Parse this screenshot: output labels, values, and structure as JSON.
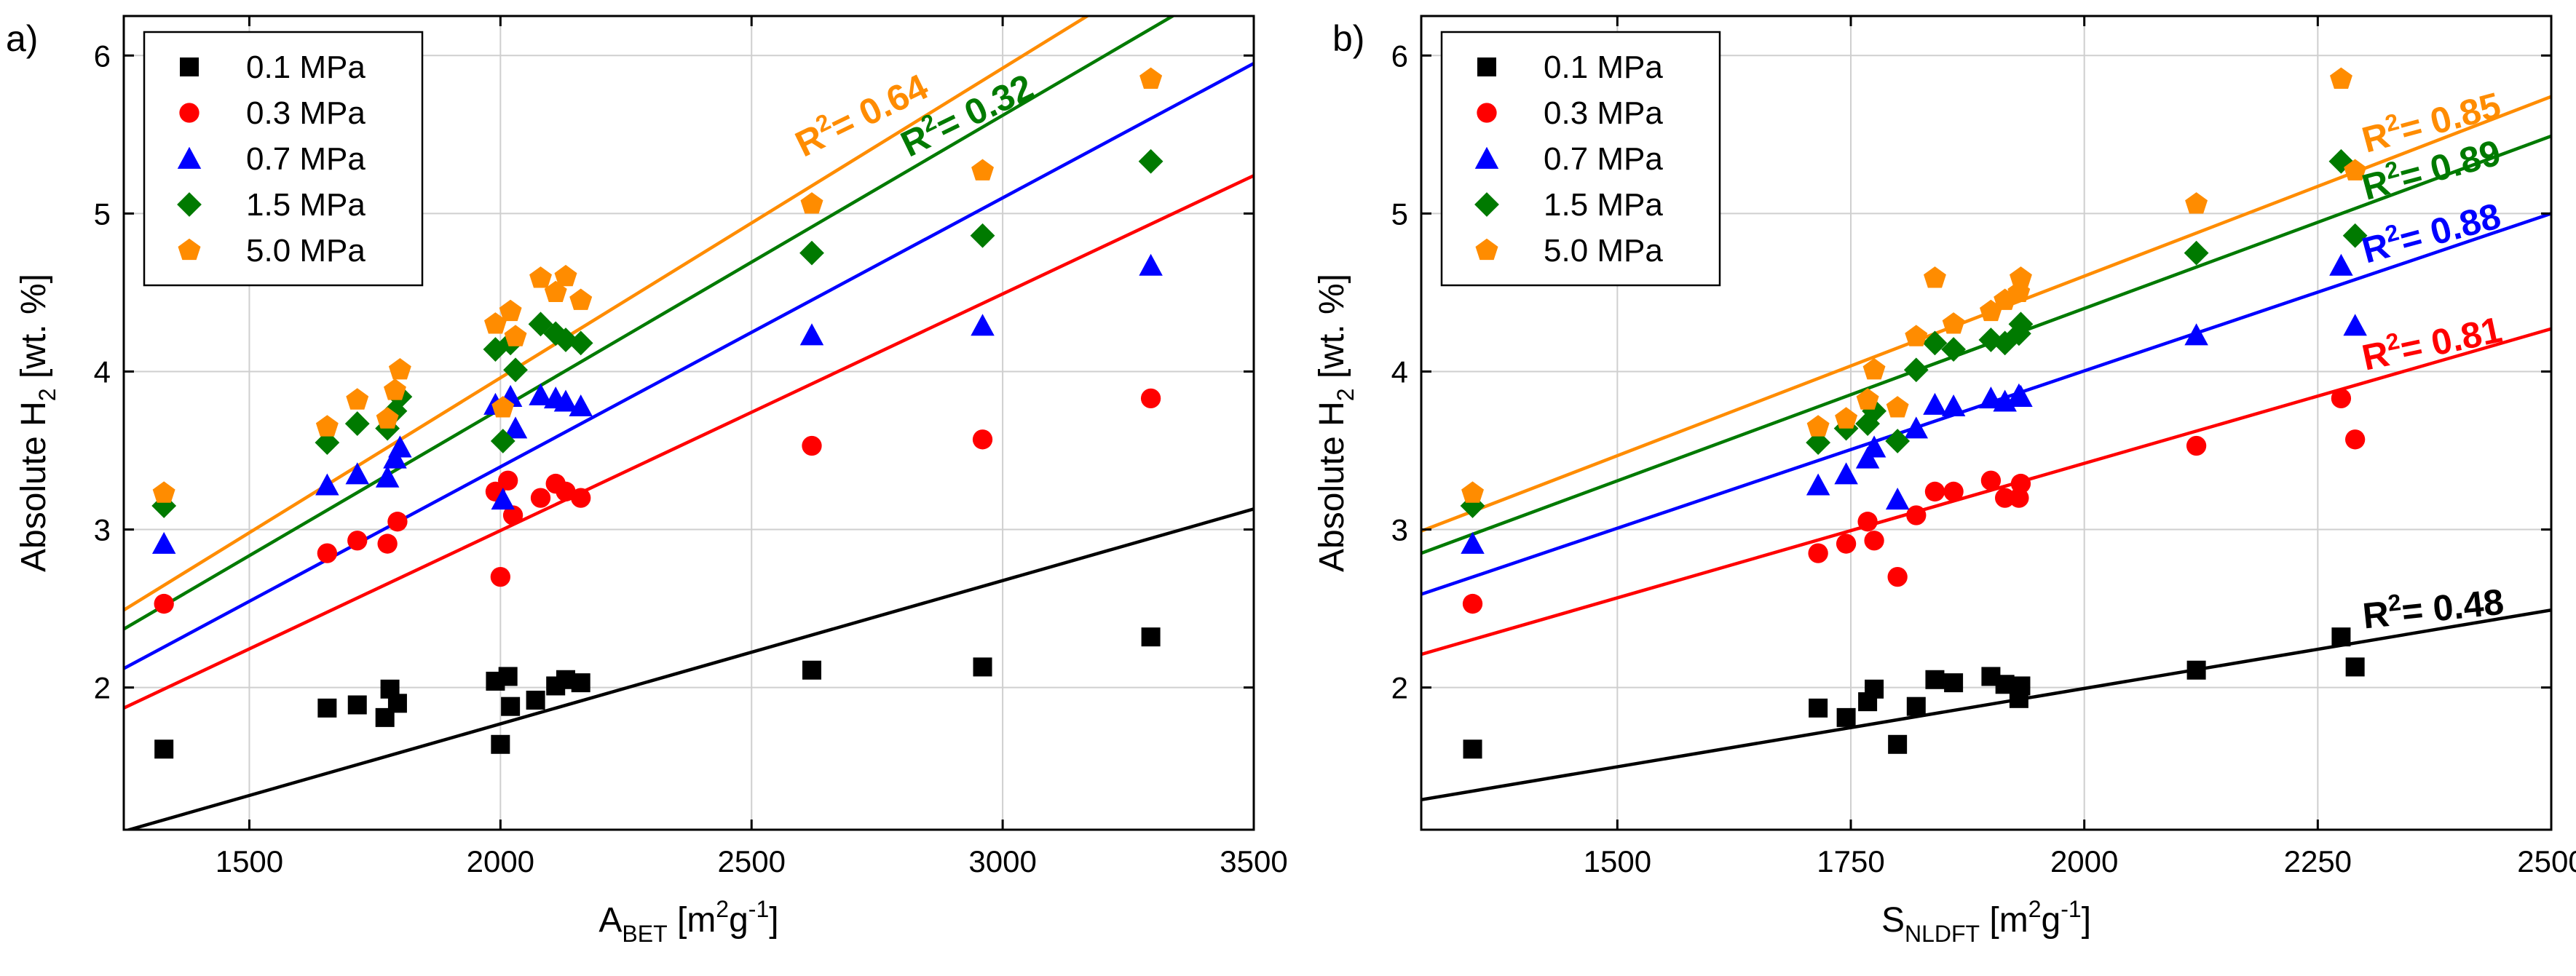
{
  "chart_data": [
    {
      "type": "scatter",
      "panel_label": "a)",
      "xlabel": {
        "main": "A",
        "sub": "BET",
        "pre_unit": " [m",
        "unit_sup": "2",
        "unit_mid": "g",
        "unit_sup2": "-1",
        "close": "]"
      },
      "ylabel": {
        "main": "Absolute H",
        "sub": "2",
        "rest": " [wt. %]"
      },
      "xlim": [
        1250,
        3500
      ],
      "ylim": [
        1.1,
        6.25
      ],
      "xticks": [
        1500,
        2000,
        2500,
        3000,
        3500
      ],
      "yticks": [
        2,
        3,
        4,
        5,
        6
      ],
      "grid": true,
      "legend_position": "top-left",
      "series": [
        {
          "name": "0.1 MPa",
          "marker": "square",
          "color": "#000000",
          "x": [
            1330,
            1655,
            1715,
            1770,
            1780,
            1795,
            1990,
            2000,
            2015,
            2020,
            2070,
            2110,
            2130,
            2160,
            2620,
            2960,
            3295
          ],
          "y": [
            1.61,
            1.87,
            1.89,
            1.81,
            1.99,
            1.9,
            2.04,
            1.64,
            2.07,
            1.88,
            1.92,
            2.01,
            2.05,
            2.03,
            2.11,
            2.13,
            2.32
          ],
          "fit": {
            "x": [
              1250,
              3500
            ],
            "y": [
              1.09,
              3.13
            ]
          },
          "r2_label": "R² = 0.48",
          "r2_visible": false
        },
        {
          "name": "0.3 MPa",
          "marker": "circle",
          "color": "#ff0000",
          "x": [
            1330,
            1655,
            1715,
            1775,
            1795,
            1990,
            2000,
            2015,
            2025,
            2080,
            2110,
            2130,
            2160,
            2620,
            2960,
            3295
          ],
          "y": [
            2.53,
            2.85,
            2.93,
            2.91,
            3.05,
            3.24,
            2.7,
            3.31,
            3.09,
            3.2,
            3.29,
            3.24,
            3.2,
            3.53,
            3.57,
            3.83
          ],
          "fit": {
            "x": [
              1250,
              3500
            ],
            "y": [
              1.87,
              5.24
            ]
          },
          "r2_label": "R² = 0.81",
          "r2_visible": false
        },
        {
          "name": "0.7 MPa",
          "marker": "triangle",
          "color": "#0000ff",
          "x": [
            1330,
            1655,
            1715,
            1775,
            1790,
            1800,
            1990,
            2005,
            2020,
            2030,
            2080,
            2110,
            2130,
            2160,
            2620,
            2960,
            3295
          ],
          "y": [
            2.91,
            3.28,
            3.35,
            3.33,
            3.45,
            3.52,
            3.79,
            3.19,
            3.84,
            3.64,
            3.85,
            3.83,
            3.81,
            3.78,
            4.23,
            4.29,
            4.67
          ],
          "fit": {
            "x": [
              1250,
              3500
            ],
            "y": [
              2.12,
              5.95
            ]
          },
          "r2_label": "R² = 0.88",
          "r2_visible": false
        },
        {
          "name": "1.5 MPa",
          "marker": "diamond",
          "color": "#007a00",
          "x": [
            1330,
            1655,
            1715,
            1775,
            1790,
            1800,
            1990,
            2005,
            2020,
            2030,
            2080,
            2110,
            2130,
            2160,
            2620,
            2960,
            3295
          ],
          "y": [
            3.15,
            3.55,
            3.67,
            3.64,
            3.75,
            3.84,
            4.14,
            3.56,
            4.18,
            4.01,
            4.3,
            4.24,
            4.2,
            4.18,
            4.75,
            4.86,
            5.33
          ],
          "fit": {
            "x": [
              1250,
              3500
            ],
            "y": [
              2.37,
              6.55
            ]
          },
          "r2_label": "R² = 0.32",
          "r2_visible": true,
          "r2_color": "#007a00"
        },
        {
          "name": "5.0 MPa",
          "marker": "pentagon",
          "color": "#ff8c00",
          "x": [
            1330,
            1655,
            1715,
            1775,
            1790,
            1800,
            1990,
            2005,
            2020,
            2030,
            2080,
            2110,
            2130,
            2160,
            2620,
            2960,
            3295
          ],
          "y": [
            3.23,
            3.65,
            3.82,
            3.7,
            3.88,
            4.01,
            4.3,
            3.77,
            4.38,
            4.22,
            4.59,
            4.5,
            4.6,
            4.45,
            5.06,
            5.27,
            5.85
          ],
          "fit": {
            "x": [
              1250,
              3500
            ],
            "y": [
              2.49,
              6.9
            ]
          },
          "r2_label": "R² = 0.64",
          "r2_visible": true,
          "r2_color": "#ff8c00"
        }
      ],
      "annotations": [
        {
          "series": 4,
          "text_main": "R",
          "text_sup": "2",
          "text_rest": "= 0.64",
          "at_x": 2730,
          "at_y": 5.55,
          "color": "#ff8c00",
          "rotate": -26
        },
        {
          "series": 3,
          "text_main": "R",
          "text_sup": "2",
          "text_rest": "= 0.32",
          "at_x": 2940,
          "at_y": 5.55,
          "color": "#007a00",
          "rotate": -26
        }
      ]
    },
    {
      "type": "scatter",
      "panel_label": "b)",
      "xlabel": {
        "main": "S",
        "sub": "NLDFT",
        "pre_unit": " [m",
        "unit_sup": "2",
        "unit_mid": "g",
        "unit_sup2": "-1",
        "close": "]"
      },
      "ylabel": {
        "main": "Absolute H",
        "sub": "2",
        "rest": " [wt. %]"
      },
      "xlim": [
        1290,
        2500
      ],
      "ylim": [
        1.1,
        6.25
      ],
      "xticks": [
        1500,
        1750,
        2000,
        2250,
        2500
      ],
      "yticks": [
        2,
        3,
        4,
        5,
        6
      ],
      "grid": true,
      "legend_position": "top-left",
      "series": [
        {
          "name": "0.1 MPa",
          "marker": "square",
          "color": "#000000",
          "x": [
            1345,
            1715,
            1745,
            1768,
            1775,
            1800,
            1820,
            1840,
            1860,
            1900,
            1915,
            1930,
            1932,
            2120,
            2275,
            2290
          ],
          "y": [
            1.61,
            1.87,
            1.81,
            1.91,
            1.99,
            1.64,
            1.88,
            2.05,
            2.03,
            2.07,
            2.02,
            1.93,
            2.01,
            2.11,
            2.32,
            2.13
          ],
          "fit": {
            "x": [
              1290,
              2500
            ],
            "y": [
              1.29,
              2.49
            ]
          },
          "r2_color": "#000000"
        },
        {
          "name": "0.3 MPa",
          "marker": "circle",
          "color": "#ff0000",
          "x": [
            1345,
            1715,
            1745,
            1768,
            1775,
            1800,
            1820,
            1840,
            1860,
            1900,
            1915,
            1930,
            1932,
            2120,
            2275,
            2290
          ],
          "y": [
            2.53,
            2.85,
            2.91,
            3.05,
            2.93,
            2.7,
            3.09,
            3.24,
            3.24,
            3.31,
            3.2,
            3.2,
            3.29,
            3.53,
            3.83,
            3.57
          ],
          "fit": {
            "x": [
              1290,
              2500
            ],
            "y": [
              2.21,
              4.27
            ]
          },
          "r2_color": "#ff0000"
        },
        {
          "name": "0.7 MPa",
          "marker": "triangle",
          "color": "#0000ff",
          "x": [
            1345,
            1715,
            1745,
            1768,
            1775,
            1800,
            1820,
            1840,
            1860,
            1900,
            1915,
            1930,
            1932,
            2120,
            2275,
            2290
          ],
          "y": [
            2.91,
            3.28,
            3.35,
            3.45,
            3.52,
            3.19,
            3.64,
            3.79,
            3.78,
            3.83,
            3.81,
            3.85,
            3.84,
            4.23,
            4.67,
            4.29
          ],
          "fit": {
            "x": [
              1290,
              2500
            ],
            "y": [
              2.59,
              5.0
            ]
          },
          "r2_color": "#0000ff"
        },
        {
          "name": "1.5 MPa",
          "marker": "diamond",
          "color": "#007a00",
          "x": [
            1345,
            1715,
            1745,
            1768,
            1775,
            1800,
            1820,
            1840,
            1860,
            1900,
            1915,
            1930,
            1932,
            2120,
            2275,
            2290
          ],
          "y": [
            3.15,
            3.55,
            3.64,
            3.67,
            3.75,
            3.56,
            4.01,
            4.18,
            4.14,
            4.2,
            4.18,
            4.24,
            4.3,
            4.75,
            5.33,
            4.86
          ],
          "fit": {
            "x": [
              1290,
              2500
            ],
            "y": [
              2.85,
              5.49
            ]
          },
          "r2_color": "#007a00"
        },
        {
          "name": "5.0 MPa",
          "marker": "pentagon",
          "color": "#ff8c00",
          "x": [
            1345,
            1715,
            1745,
            1768,
            1775,
            1800,
            1820,
            1840,
            1860,
            1900,
            1915,
            1930,
            1932,
            2120,
            2275,
            2290
          ],
          "y": [
            3.23,
            3.65,
            3.7,
            3.82,
            4.01,
            3.77,
            4.22,
            4.59,
            4.3,
            4.38,
            4.45,
            4.5,
            4.59,
            5.06,
            5.85,
            5.27
          ],
          "fit": {
            "x": [
              1290,
              2500
            ],
            "y": [
              2.99,
              5.74
            ]
          },
          "r2_color": "#ff8c00"
        }
      ],
      "annotations": [
        {
          "series": 4,
          "text_main": "R",
          "text_sup": "2",
          "text_rest": "= 0.85",
          "at_x": 2375,
          "at_y": 5.5,
          "color": "#ff8c00",
          "rotate": -15
        },
        {
          "series": 3,
          "text_main": "R",
          "text_sup": "2",
          "text_rest": "= 0.89",
          "at_x": 2375,
          "at_y": 5.2,
          "color": "#007a00",
          "rotate": -15
        },
        {
          "series": 2,
          "text_main": "R",
          "text_sup": "2",
          "text_rest": "= 0.88",
          "at_x": 2375,
          "at_y": 4.8,
          "color": "#0000ff",
          "rotate": -15
        },
        {
          "series": 1,
          "text_main": "R",
          "text_sup": "2",
          "text_rest": "= 0.81",
          "at_x": 2375,
          "at_y": 4.1,
          "color": "#ff0000",
          "rotate": -12
        },
        {
          "series": 0,
          "text_main": "R",
          "text_sup": "2",
          "text_rest": "= 0.48",
          "at_x": 2375,
          "at_y": 2.42,
          "color": "#000000",
          "rotate": -6
        }
      ]
    }
  ]
}
